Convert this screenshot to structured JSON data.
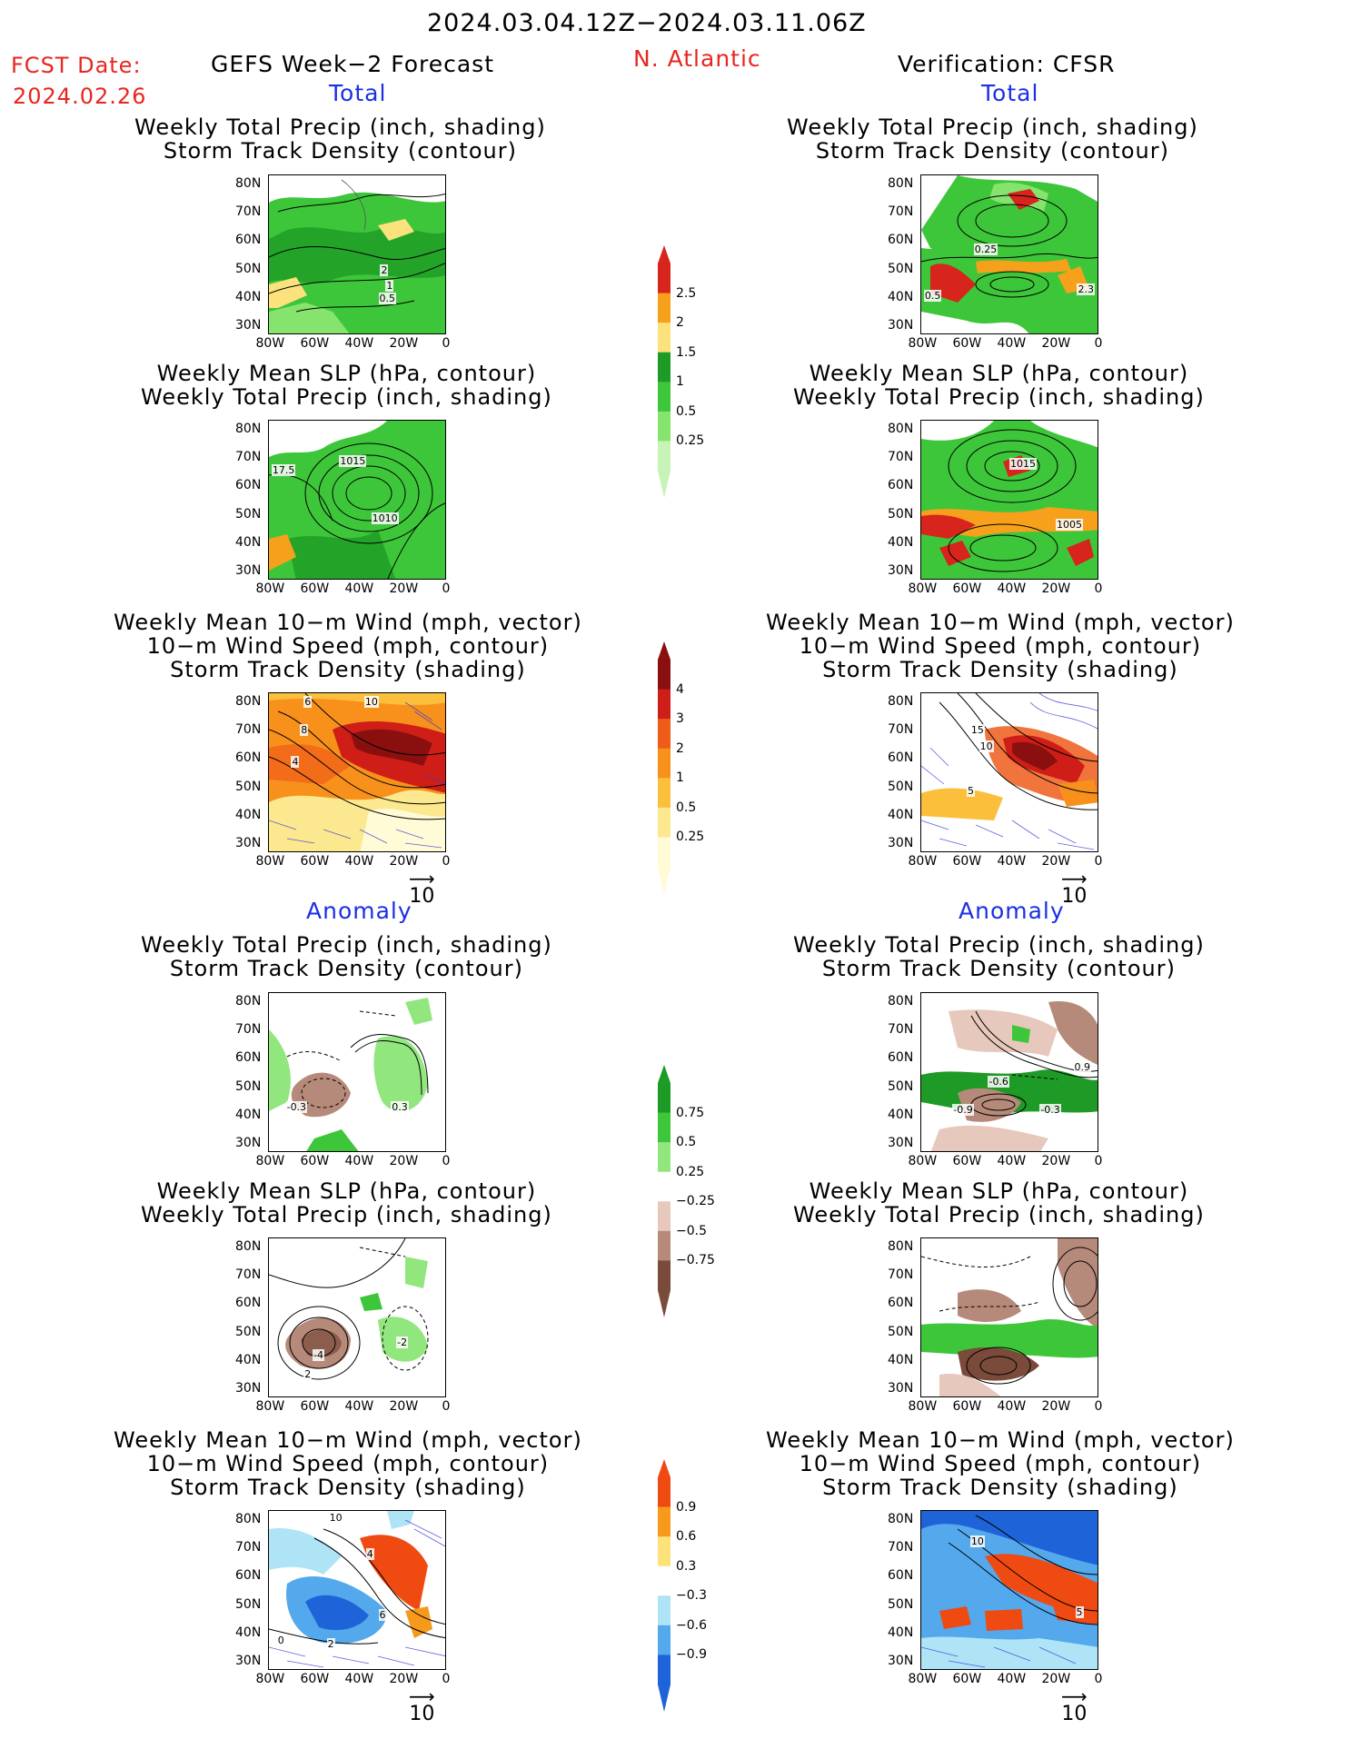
{
  "header": {
    "period": "2024.03.04.12Z−2024.03.11.06Z",
    "fcst_label": "FCST Date:",
    "fcst_date": "2024.02.26",
    "forecast": "GEFS Week−2 Forecast",
    "region": "N. Atlantic",
    "verification": "Verification: CFSR"
  },
  "sections": {
    "total": "Total",
    "anomaly": "Anomaly"
  },
  "titles": {
    "precip": [
      "Weekly Total Precip (inch, shading)",
      "Storm Track Density (contour)"
    ],
    "slp": [
      "Weekly Mean SLP (hPa, contour)",
      "Weekly Total Precip (inch, shading)"
    ],
    "wind": [
      "Weekly Mean 10−m Wind (mph, vector)",
      "10−m Wind Speed (mph, contour)",
      "Storm Track Density (shading)"
    ]
  },
  "axes": {
    "lat": [
      "80N",
      "70N",
      "60N",
      "50N",
      "40N",
      "30N"
    ],
    "lon": [
      "80W",
      "60W",
      "40W",
      "20W",
      "0"
    ]
  },
  "vector_ref": "10",
  "colorbars": {
    "precip_total": {
      "labels": [
        "2.5",
        "2",
        "1.5",
        "1",
        "0.5",
        "0.25"
      ],
      "colors": [
        "#d7241c",
        "#f7a01c",
        "#fbe27c",
        "#1e9a26",
        "#3ec63a",
        "#86e46e",
        "#c6f4b6"
      ]
    },
    "storm_total": {
      "labels": [
        "4",
        "3",
        "2",
        "1",
        "0.5",
        "0.25"
      ],
      "colors": [
        "#8a1010",
        "#cf1e18",
        "#ef5c1a",
        "#f7911c",
        "#fbbf3c",
        "#fce88e",
        "#fffbd6"
      ]
    },
    "precip_anom": {
      "labels": [
        "0.75",
        "0.5",
        "0.25",
        "−0.25",
        "−0.5",
        "−0.75"
      ],
      "colors": [
        "#1e9a26",
        "#3ec63a",
        "#92e67e",
        "#ffffff",
        "#e6c8bc",
        "#b68a7a",
        "#7a4a3a"
      ]
    },
    "storm_anom": {
      "labels": [
        "0.9",
        "0.6",
        "0.3",
        "−0.3",
        "−0.6",
        "−0.9"
      ],
      "colors": [
        "#ef4a12",
        "#f79a1c",
        "#fde17a",
        "#ffffff",
        "#aee4f6",
        "#54a8ec",
        "#1e64d8"
      ]
    }
  },
  "panels": {
    "l1": {
      "labels": [
        "2",
        "1",
        "0.5"
      ]
    },
    "r1": {
      "labels": [
        "0.25",
        "0.5",
        "2.3"
      ]
    },
    "l2": {
      "labels": [
        "1015",
        "17.5",
        "1010"
      ]
    },
    "r2": {
      "labels": [
        "1015",
        "1005"
      ]
    },
    "l3": {
      "labels": [
        "6",
        "10",
        "8",
        "4"
      ]
    },
    "r3": {
      "labels": [
        "15",
        "10",
        "5"
      ]
    },
    "l4": {
      "labels": [
        "-0.3",
        "0.3"
      ]
    },
    "r4": {
      "labels": [
        "-0.6",
        "-0.9",
        "-0.3",
        "0.9"
      ]
    },
    "l5": {
      "labels": [
        "-2",
        "-4",
        "2"
      ]
    },
    "r5": {
      "labels": []
    },
    "l6": {
      "labels": [
        "10",
        "4",
        "0",
        "2",
        "6"
      ]
    },
    "r6": {
      "labels": [
        "10",
        "5"
      ]
    }
  }
}
